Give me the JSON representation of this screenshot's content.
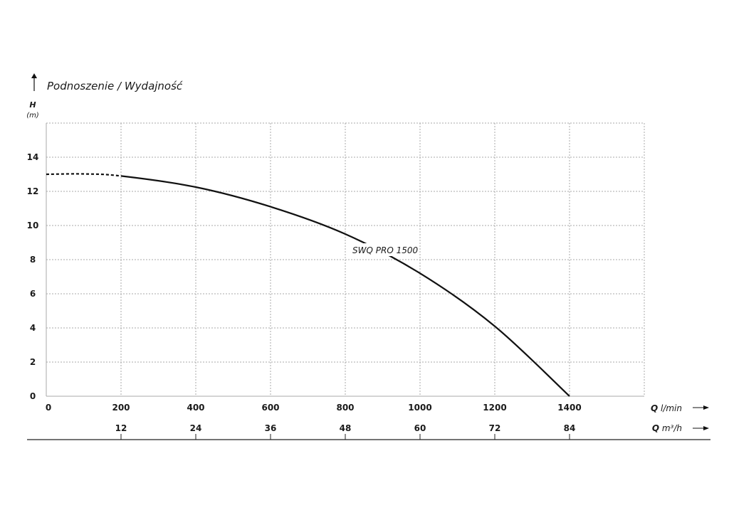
{
  "chart_data": {
    "type": "line",
    "title": "Podnoszenie / Wydajność",
    "y_label": "H",
    "y_unit": "(m)",
    "x_label": {
      "symbol": "Q",
      "unit": "l/min"
    },
    "x2_label": {
      "symbol": "Q",
      "unit": "m³/h"
    },
    "x": [
      0,
      100,
      200,
      400,
      600,
      800,
      1000,
      1200,
      1400
    ],
    "series": [
      {
        "name": "SWQ PRO 1500",
        "color": "#111111",
        "values": [
          13,
          13.02,
          12.9,
          12.25,
          11.1,
          9.5,
          7.2,
          4.1,
          0
        ]
      }
    ],
    "dashed_below_x": 200,
    "xlim": [
      0,
      1600
    ],
    "xticks": [
      0,
      200,
      400,
      600,
      800,
      1000,
      1200,
      1400
    ],
    "x2lim": [
      0,
      96
    ],
    "x2ticks": [
      12,
      24,
      36,
      48,
      60,
      72,
      84
    ],
    "ylim": [
      0,
      16
    ],
    "yticks": [
      0,
      2,
      4,
      6,
      8,
      10,
      12,
      14
    ],
    "grid": true
  }
}
